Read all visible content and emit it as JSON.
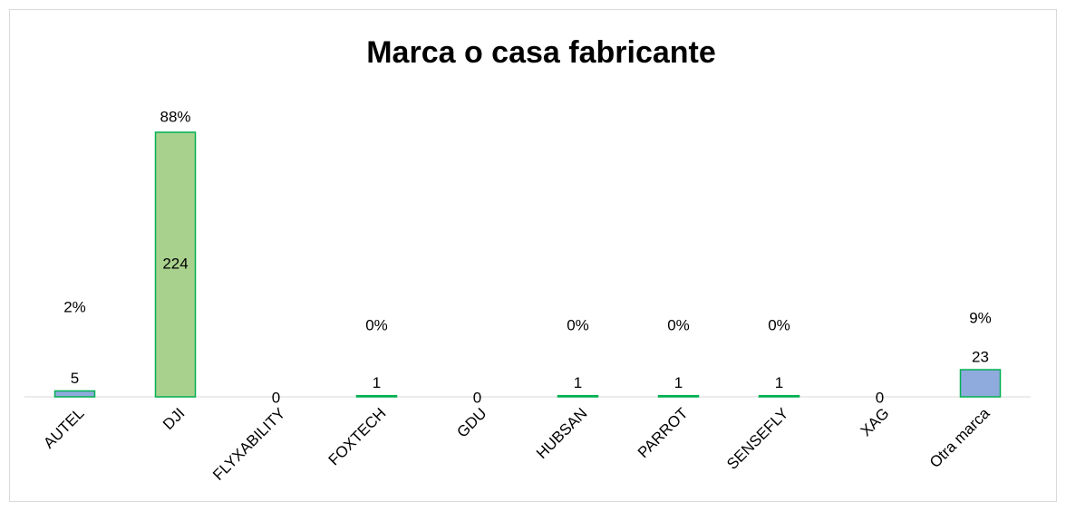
{
  "chart_data": {
    "type": "bar",
    "title": "Marca o casa fabricante",
    "categories": [
      "AUTEL",
      "DJI",
      "FLYXABILITY",
      "FOXTECH",
      "GDU",
      "HUBSAN",
      "PARROT",
      "SENSEFLY",
      "XAG",
      "Otra marca"
    ],
    "values": [
      5,
      224,
      0,
      1,
      0,
      1,
      1,
      1,
      0,
      23
    ],
    "colors": [
      "#8faadc",
      "#a9d18e",
      "#a9d18e",
      "#a9d18e",
      "#a9d18e",
      "#a9d18e",
      "#a9d18e",
      "#a9d18e",
      "#a9d18e",
      "#8faadc"
    ],
    "edge_color": "#00b050",
    "percents": [
      2,
      88,
      null,
      0,
      null,
      0,
      0,
      0,
      null,
      9
    ],
    "percent_labels": [
      "2%",
      "88%",
      null,
      "0%",
      null,
      "0%",
      "0%",
      "0%",
      null,
      "9%"
    ]
  }
}
